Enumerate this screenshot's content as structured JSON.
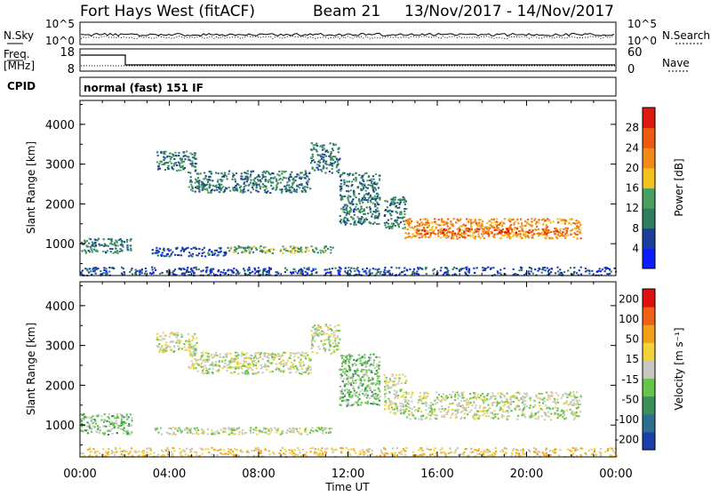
{
  "header": {
    "station": "Fort Hays West (fitACF)",
    "beam": "Beam 21",
    "dates": "13/Nov/2017 - 14/Nov/2017"
  },
  "noise_panel": {
    "left_label": "N.Sky",
    "left_ticks": [
      "10^5",
      "10^0"
    ],
    "right_label": "N.Search",
    "right_ticks": [
      "10^5",
      "10^0"
    ]
  },
  "freq_panel": {
    "left_label_line1": "Freq.",
    "left_label_line2": "[MHz]",
    "left_ticks": [
      "18",
      "8"
    ],
    "right_label": "Nave",
    "right_ticks": [
      "60",
      "0"
    ]
  },
  "cpid_panel": {
    "label": "CPID",
    "mode_text": "normal (fast) 151 IF"
  },
  "chart_data": [
    {
      "type": "heatmap",
      "name": "power",
      "ylabel": "Slant Range [km]",
      "ylim": [
        200,
        4600
      ],
      "y_ticks": [
        "1000",
        "2000",
        "3000",
        "4000"
      ],
      "x_ticks": [
        "00:00",
        "04:00",
        "08:00",
        "12:00",
        "16:00",
        "20:00",
        "00:00"
      ],
      "colorbar_label": "Power [dB]",
      "colorbar_ticks": [
        "4",
        "8",
        "12",
        "16",
        "20",
        "24",
        "28"
      ],
      "colorbar_colors": [
        "#0a1eff",
        "#1c3f9e",
        "#2e7d5e",
        "#4aa060",
        "#f2c21e",
        "#f28c16",
        "#ee5a10",
        "#dd1a10"
      ],
      "regions": [
        {
          "t0": 0.0,
          "t1": 2.3,
          "r0": 780,
          "r1": 1150,
          "level": 2
        },
        {
          "t0": 3.4,
          "t1": 5.2,
          "r0": 2850,
          "r1": 3350,
          "level": 2
        },
        {
          "t0": 4.8,
          "t1": 10.3,
          "r0": 2300,
          "r1": 2850,
          "level": 2
        },
        {
          "t0": 3.2,
          "t1": 6.6,
          "r0": 700,
          "r1": 930,
          "level": 1
        },
        {
          "t0": 6.6,
          "t1": 11.3,
          "r0": 780,
          "r1": 960,
          "level": 3
        },
        {
          "t0": 10.3,
          "t1": 11.6,
          "r0": 2800,
          "r1": 3550,
          "level": 2
        },
        {
          "t0": 11.6,
          "t1": 13.4,
          "r0": 1500,
          "r1": 2800,
          "level": 2
        },
        {
          "t0": 13.6,
          "t1": 14.6,
          "r0": 1400,
          "r1": 2200,
          "level": 2
        },
        {
          "t0": 14.5,
          "t1": 22.4,
          "r0": 1150,
          "r1": 1650,
          "level": 5
        },
        {
          "t0": 15.0,
          "t1": 21.8,
          "r0": 1250,
          "r1": 1400,
          "level": 6
        },
        {
          "t0": 0.0,
          "t1": 24.0,
          "r0": 220,
          "r1": 430,
          "level": 1
        }
      ]
    },
    {
      "type": "heatmap",
      "name": "velocity",
      "ylabel": "Slant Range [km]",
      "ylim": [
        200,
        4600
      ],
      "y_ticks": [
        "1000",
        "2000",
        "3000",
        "4000"
      ],
      "x_ticks": [
        "00:00",
        "04:00",
        "08:00",
        "12:00",
        "16:00",
        "20:00",
        "00:00"
      ],
      "xlabel": "Time UT",
      "colorbar_label": "Velocity [m s⁻¹]",
      "colorbar_ticks": [
        "200",
        "100",
        "50",
        "15",
        "-15",
        "-50",
        "-100",
        "-200"
      ],
      "colorbar_colors": [
        "#1a3fa8",
        "#2c6e8e",
        "#3b8f5a",
        "#66c64a",
        "#c8c8c0",
        "#f2d43a",
        "#f2a018",
        "#f06018",
        "#e01010"
      ],
      "regions": [
        {
          "t0": 0.0,
          "t1": 2.3,
          "r0": 780,
          "r1": 1300,
          "level": 3
        },
        {
          "t0": 3.4,
          "t1": 5.2,
          "r0": 2850,
          "r1": 3350,
          "level": 4
        },
        {
          "t0": 4.8,
          "t1": 10.3,
          "r0": 2300,
          "r1": 2850,
          "level": 4
        },
        {
          "t0": 3.2,
          "t1": 11.3,
          "r0": 780,
          "r1": 960,
          "level": 4
        },
        {
          "t0": 10.3,
          "t1": 11.6,
          "r0": 2800,
          "r1": 3550,
          "level": 4
        },
        {
          "t0": 11.6,
          "t1": 13.4,
          "r0": 1500,
          "r1": 2800,
          "level": 3
        },
        {
          "t0": 13.6,
          "t1": 14.6,
          "r0": 1300,
          "r1": 2300,
          "level": 4
        },
        {
          "t0": 14.5,
          "t1": 22.4,
          "r0": 1150,
          "r1": 1850,
          "level": 4
        },
        {
          "t0": 0.0,
          "t1": 24.0,
          "r0": 220,
          "r1": 450,
          "level": 5
        }
      ]
    }
  ]
}
